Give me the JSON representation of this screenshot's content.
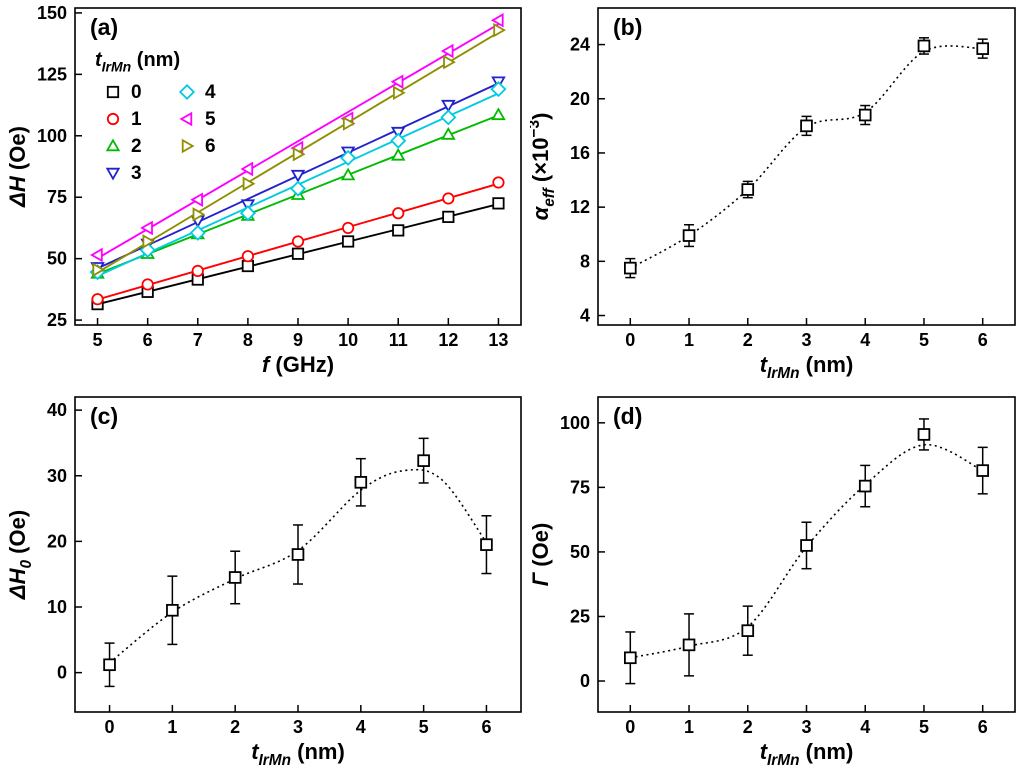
{
  "figure": {
    "background": "#ffffff",
    "panel_labels": [
      "(a)",
      "(b)",
      "(c)",
      "(d)"
    ]
  },
  "chart_data": [
    {
      "id": "a",
      "type": "line",
      "panel_label": "(a)",
      "xlabel": "f (GHz)",
      "ylabel": "ΔH (Oe)",
      "xlabel_parts": [
        {
          "t": "f",
          "i": true
        },
        {
          "t": " (GHz)"
        }
      ],
      "ylabel_parts": [
        {
          "t": "ΔH",
          "i": true
        },
        {
          "t": " (Oe)"
        }
      ],
      "xlim": [
        4.55,
        13.45
      ],
      "ylim": [
        23,
        152
      ],
      "xticks": [
        5,
        6,
        7,
        8,
        9,
        10,
        11,
        12,
        13
      ],
      "yticks": [
        25,
        50,
        75,
        100,
        125,
        150
      ],
      "x": [
        5,
        6,
        7,
        8,
        9,
        10,
        11,
        12,
        13
      ],
      "legend": {
        "title": "t_IrMn (nm)",
        "title_parts": [
          {
            "t": "t",
            "i": true
          },
          {
            "t": "IrMn",
            "i": true,
            "s": "sub"
          },
          {
            "t": " (nm)"
          }
        ],
        "columns": [
          [
            "0",
            "1",
            "2",
            "3"
          ],
          [
            "4",
            "5",
            "6"
          ]
        ]
      },
      "series": [
        {
          "name": "0",
          "color": "#000000",
          "marker": "square",
          "values": [
            31.5,
            36.5,
            41.5,
            47,
            52,
            57,
            61.5,
            67,
            72.5
          ]
        },
        {
          "name": "1",
          "color": "#ff0000",
          "marker": "circle",
          "values": [
            33.5,
            39.5,
            45,
            51,
            57,
            62.5,
            68.5,
            74.5,
            81
          ]
        },
        {
          "name": "2",
          "color": "#00bb00",
          "marker": "triangle-up",
          "values": [
            44,
            52,
            60,
            67.5,
            76,
            84,
            92,
            100.5,
            108.5
          ]
        },
        {
          "name": "3",
          "color": "#2222cc",
          "marker": "triangle-down",
          "values": [
            46.5,
            56,
            65.5,
            72,
            84,
            93.5,
            101.5,
            112.5,
            122
          ]
        },
        {
          "name": "4",
          "color": "#00cbe0",
          "marker": "diamond",
          "values": [
            44.5,
            53.5,
            60.5,
            68.5,
            78.5,
            91,
            98,
            107.5,
            119
          ]
        },
        {
          "name": "5",
          "color": "#ff00ff",
          "marker": "triangle-left",
          "values": [
            51.5,
            62.5,
            74,
            86.5,
            95,
            107,
            122,
            134.5,
            147
          ]
        },
        {
          "name": "6",
          "color": "#8f8f00",
          "marker": "triangle-right",
          "values": [
            45.5,
            57,
            68,
            80.5,
            92.5,
            105,
            117.5,
            130,
            143
          ]
        }
      ]
    },
    {
      "id": "b",
      "type": "scatter",
      "panel_label": "(b)",
      "xlabel": "t_IrMn (nm)",
      "ylabel": "α_eff (×10⁻³)",
      "xlabel_parts": [
        {
          "t": "t",
          "i": true
        },
        {
          "t": "IrMn",
          "i": true,
          "s": "sub"
        },
        {
          "t": " (nm)"
        }
      ],
      "ylabel_parts": [
        {
          "t": "α",
          "i": true
        },
        {
          "t": "eff",
          "i": true,
          "s": "sub"
        },
        {
          "t": " (×10"
        },
        {
          "t": "−3",
          "s": "sup"
        },
        {
          "t": ")"
        }
      ],
      "xlim": [
        -0.55,
        6.55
      ],
      "ylim": [
        3.3,
        26.7
      ],
      "xticks": [
        0,
        1,
        2,
        3,
        4,
        5,
        6
      ],
      "yticks": [
        4,
        8,
        12,
        16,
        20,
        24
      ],
      "x": [
        0,
        1,
        2,
        3,
        4,
        5,
        6
      ],
      "y": [
        7.5,
        9.9,
        13.3,
        18.0,
        18.8,
        23.9,
        23.7
      ],
      "yerr": [
        0.7,
        0.8,
        0.6,
        0.7,
        0.7,
        0.6,
        0.7
      ],
      "marker": "square",
      "color": "#000000",
      "trend": {
        "style": "dotted",
        "x": [
          0,
          1,
          2,
          3,
          4,
          5,
          6
        ],
        "y": [
          7.5,
          9.9,
          13.3,
          17.9,
          19.0,
          23.5,
          23.7
        ]
      }
    },
    {
      "id": "c",
      "type": "scatter",
      "panel_label": "(c)",
      "xlabel": "t_IrMn (nm)",
      "ylabel": "ΔH_0 (Oe)",
      "xlabel_parts": [
        {
          "t": "t",
          "i": true
        },
        {
          "t": "IrMn",
          "i": true,
          "s": "sub"
        },
        {
          "t": " (nm)"
        }
      ],
      "ylabel_parts": [
        {
          "t": "ΔH",
          "i": true
        },
        {
          "t": "0",
          "i": true,
          "s": "sub"
        },
        {
          "t": " (Oe)"
        }
      ],
      "xlim": [
        -0.55,
        6.55
      ],
      "ylim": [
        -6,
        42
      ],
      "xticks": [
        0,
        1,
        2,
        3,
        4,
        5,
        6
      ],
      "yticks": [
        0,
        10,
        20,
        30,
        40
      ],
      "x": [
        0,
        1,
        2,
        3,
        4,
        5,
        6
      ],
      "y": [
        1.2,
        9.5,
        14.5,
        18,
        29,
        32.3,
        19.5
      ],
      "yerr": [
        3.3,
        5.2,
        4.0,
        4.5,
        3.6,
        3.4,
        4.4
      ],
      "marker": "square",
      "color": "#000000",
      "trend": {
        "style": "dotted",
        "x": [
          0,
          1,
          2,
          3,
          4,
          4.7,
          5.3,
          6
        ],
        "y": [
          1.5,
          9.2,
          14.3,
          18.6,
          27.8,
          30.8,
          29.3,
          19.8
        ]
      }
    },
    {
      "id": "d",
      "type": "scatter",
      "panel_label": "(d)",
      "xlabel": "t_IrMn (nm)",
      "ylabel": "Γ (Oe)",
      "xlabel_parts": [
        {
          "t": "t",
          "i": true
        },
        {
          "t": "IrMn",
          "i": true,
          "s": "sub"
        },
        {
          "t": " (nm)"
        }
      ],
      "ylabel_parts": [
        {
          "t": "Γ",
          "i": true
        },
        {
          "t": " (Oe)"
        }
      ],
      "xlim": [
        -0.55,
        6.55
      ],
      "ylim": [
        -12,
        110
      ],
      "xticks": [
        0,
        1,
        2,
        3,
        4,
        5,
        6
      ],
      "yticks": [
        0,
        25,
        50,
        75,
        100
      ],
      "x": [
        0,
        1,
        2,
        3,
        4,
        5,
        6
      ],
      "y": [
        9,
        14,
        19.5,
        52.5,
        75.5,
        95.5,
        81.5
      ],
      "yerr": [
        10,
        12,
        9.5,
        9,
        8,
        6,
        9
      ],
      "marker": "square",
      "color": "#000000",
      "trend": {
        "style": "dotted",
        "x": [
          0,
          1,
          2,
          3,
          4,
          5,
          6
        ],
        "y": [
          9,
          13.5,
          21,
          52,
          76,
          91.5,
          81.5
        ]
      }
    }
  ]
}
